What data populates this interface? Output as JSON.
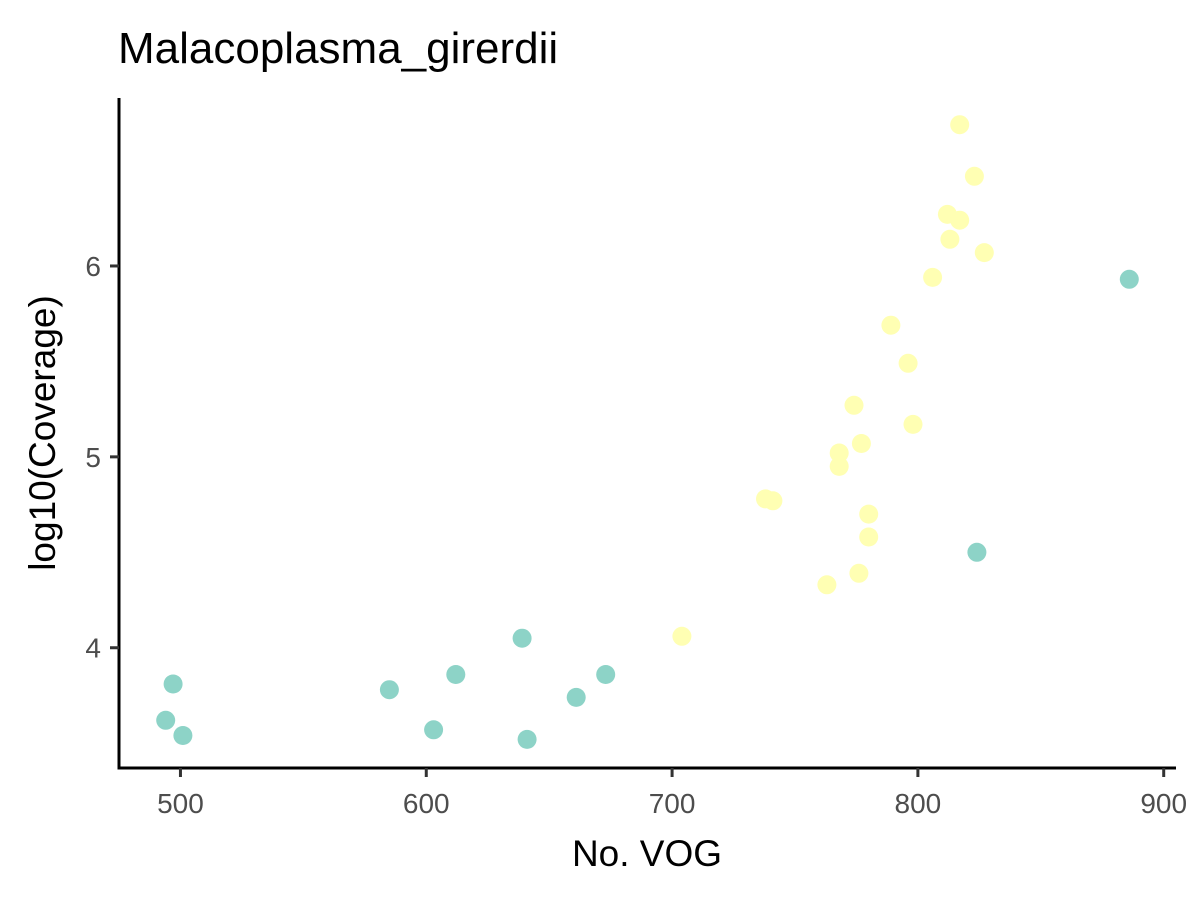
{
  "chart_data": {
    "type": "scatter",
    "title": "Malacoplasma_girerdii",
    "xlabel": "No. VOG",
    "ylabel": "log10(Coverage)",
    "xlim": [
      475,
      905
    ],
    "ylim": [
      3.37,
      6.88
    ],
    "x_ticks": [
      500,
      600,
      700,
      800,
      900
    ],
    "y_ticks": [
      4,
      5,
      6
    ],
    "x_tick_labels": [
      "500",
      "600",
      "700",
      "800",
      "900"
    ],
    "y_tick_labels": [
      "4",
      "5",
      "6"
    ],
    "grid": false,
    "legend": "none",
    "colors": {
      "teal": "#8dd3c7",
      "yellow": "#ffffb3"
    },
    "series": [
      {
        "color": "teal",
        "points": [
          {
            "x": 494,
            "y": 3.62
          },
          {
            "x": 497,
            "y": 3.81
          },
          {
            "x": 501,
            "y": 3.54
          },
          {
            "x": 585,
            "y": 3.78
          },
          {
            "x": 603,
            "y": 3.57
          },
          {
            "x": 612,
            "y": 3.86
          },
          {
            "x": 639,
            "y": 4.05
          },
          {
            "x": 641,
            "y": 3.52
          },
          {
            "x": 661,
            "y": 3.74
          },
          {
            "x": 673,
            "y": 3.86
          },
          {
            "x": 824,
            "y": 4.5
          },
          {
            "x": 886,
            "y": 5.93
          }
        ]
      },
      {
        "color": "yellow",
        "points": [
          {
            "x": 704,
            "y": 4.06
          },
          {
            "x": 738,
            "y": 4.78
          },
          {
            "x": 741,
            "y": 4.77
          },
          {
            "x": 763,
            "y": 4.33
          },
          {
            "x": 768,
            "y": 5.02
          },
          {
            "x": 768,
            "y": 4.95
          },
          {
            "x": 774,
            "y": 5.27
          },
          {
            "x": 776,
            "y": 4.39
          },
          {
            "x": 777,
            "y": 5.07
          },
          {
            "x": 780,
            "y": 4.7
          },
          {
            "x": 780,
            "y": 4.58
          },
          {
            "x": 789,
            "y": 5.69
          },
          {
            "x": 796,
            "y": 5.49
          },
          {
            "x": 798,
            "y": 5.17
          },
          {
            "x": 806,
            "y": 5.94
          },
          {
            "x": 812,
            "y": 6.27
          },
          {
            "x": 813,
            "y": 6.14
          },
          {
            "x": 817,
            "y": 6.74
          },
          {
            "x": 817,
            "y": 6.24
          },
          {
            "x": 823,
            "y": 6.47
          },
          {
            "x": 827,
            "y": 6.07
          }
        ]
      }
    ]
  }
}
